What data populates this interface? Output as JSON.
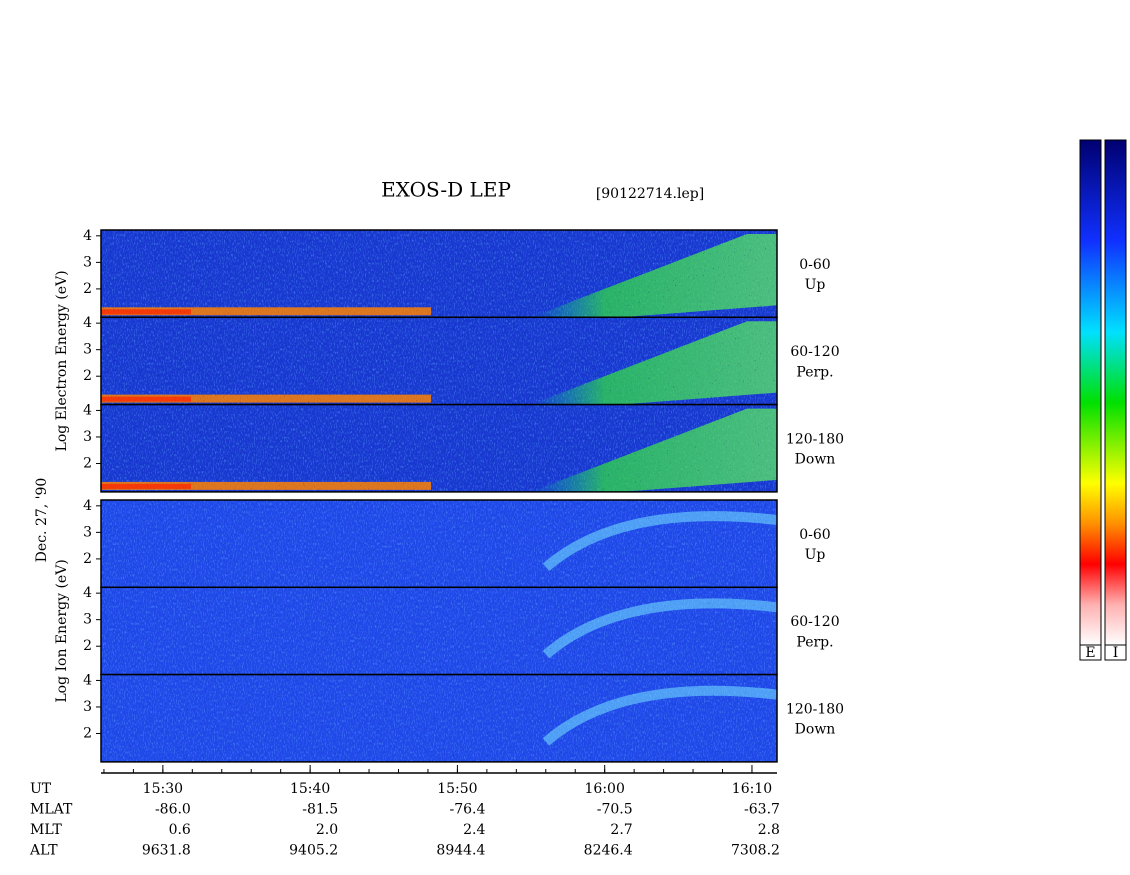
{
  "chart_data": {
    "type": "spectrogram",
    "title": "EXOS-D LEP",
    "file": "[90122714.lep]",
    "date": "Dec. 27, '90",
    "groups": [
      {
        "axis_label": "Log Electron Energy (eV)",
        "panels": [
          {
            "label": "0-60",
            "sublabel": "Up"
          },
          {
            "label": "60-120",
            "sublabel": "Perp."
          },
          {
            "label": "120-180",
            "sublabel": "Down"
          }
        ]
      },
      {
        "axis_label": "Log Ion Energy (eV)",
        "panels": [
          {
            "label": "0-60",
            "sublabel": "Up"
          },
          {
            "label": "60-120",
            "sublabel": "Perp."
          },
          {
            "label": "120-180",
            "sublabel": "Down"
          }
        ]
      }
    ],
    "ylim": [
      0.93,
      4.22
    ],
    "yticks": [
      2,
      3,
      4
    ],
    "xlim": [
      925.8,
      971.7
    ],
    "xticks": [
      {
        "value": 930,
        "label": "15:30"
      },
      {
        "value": 940,
        "label": "15:40"
      },
      {
        "value": 950,
        "label": "15:50"
      },
      {
        "value": 960,
        "label": "16:00"
      },
      {
        "value": 970,
        "label": "16:10"
      }
    ],
    "minor_tick_step": 2,
    "rows": [
      {
        "label": "UT"
      },
      {
        "label": "MLAT",
        "values": [
          "-86.0",
          "-81.5",
          "-76.4",
          "-70.5",
          "-63.7"
        ]
      },
      {
        "label": "MLT",
        "values": [
          "0.6",
          "2.0",
          "2.4",
          "2.7",
          "2.8"
        ]
      },
      {
        "label": "ALT",
        "values": [
          "9631.8",
          "9405.2",
          "8944.4",
          "8246.4",
          "7308.2"
        ]
      }
    ],
    "colorbars": [
      "E",
      "I"
    ]
  }
}
